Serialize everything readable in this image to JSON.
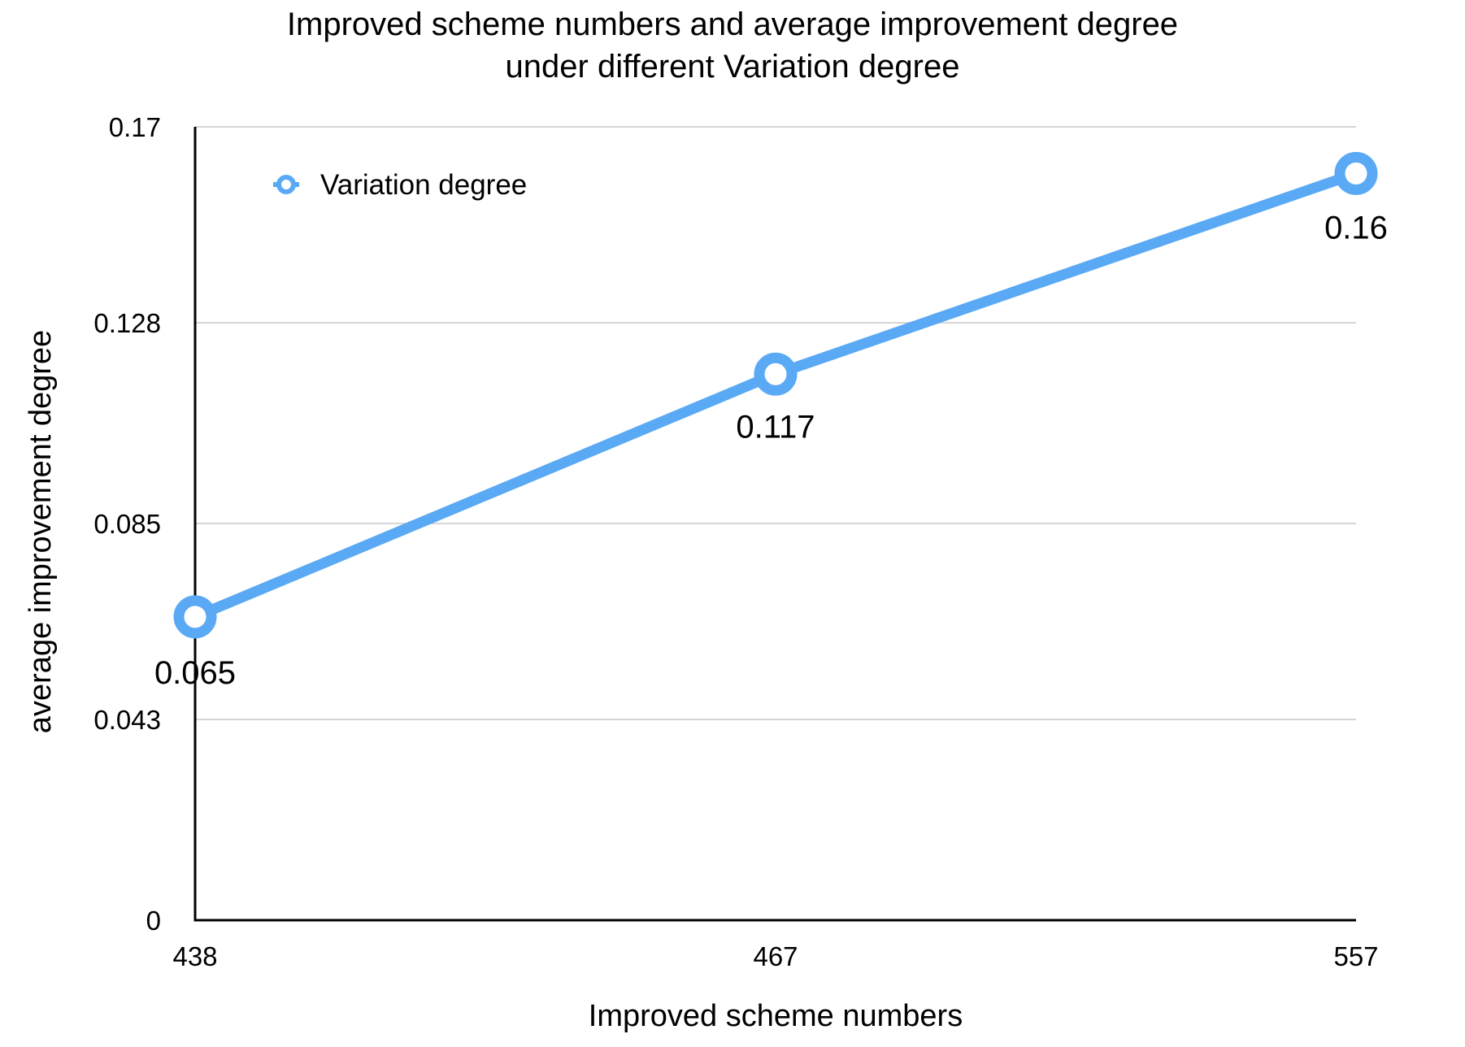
{
  "chart_data": {
    "type": "line",
    "title_lines": [
      "Improved scheme numbers and average improvement degree",
      "under different Variation degree"
    ],
    "xlabel": "Improved scheme numbers",
    "ylabel": "average improvement degree",
    "categories": [
      "438",
      "467",
      "557"
    ],
    "series": [
      {
        "name": "Variation degree",
        "values": [
          0.065,
          0.117,
          0.16
        ],
        "labels": [
          "0.065",
          "0.117",
          "0.16"
        ],
        "color": "#5AA9F5"
      }
    ],
    "ylim": [
      0,
      0.17
    ],
    "y_ticks": [
      0,
      0.043,
      0.085,
      0.128,
      0.17
    ],
    "y_tick_labels": [
      "0",
      "0.043",
      "0.085",
      "0.128",
      "0.17"
    ],
    "grid": true,
    "legend_position": "top-left"
  }
}
